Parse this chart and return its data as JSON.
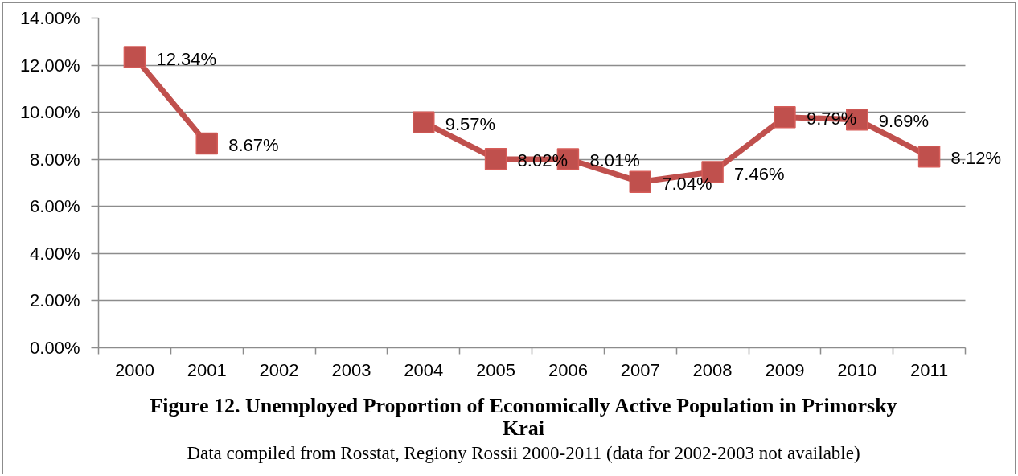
{
  "chart_data": {
    "type": "line",
    "title": "Figure 12. Unemployed Proportion of Economically Active Population in Primorsky Krai",
    "annotations": [
      "Data compiled from Rosstat, Regiony Rossii 2000-2011 (data for 2002-2003 not available)"
    ],
    "categories": [
      "2000",
      "2001",
      "2002",
      "2003",
      "2004",
      "2005",
      "2006",
      "2007",
      "2008",
      "2009",
      "2010",
      "2011"
    ],
    "series": [
      {
        "color": "#c0504d",
        "values": [
          12.34,
          8.67,
          null,
          null,
          9.57,
          8.02,
          8.01,
          7.04,
          7.46,
          9.79,
          9.69,
          8.12
        ],
        "value_labels": [
          "12.34%",
          "8.67%",
          null,
          null,
          "9.57%",
          "8.02%",
          "8.01%",
          "7.04%",
          "7.46%",
          "9.79%",
          "9.69%",
          "8.12%"
        ]
      }
    ],
    "ylim": [
      0,
      14
    ],
    "yticks": [
      {
        "value": 0,
        "label": "0.00%"
      },
      {
        "value": 2,
        "label": "2.00%"
      },
      {
        "value": 4,
        "label": "4.00%"
      },
      {
        "value": 6,
        "label": "6.00%"
      },
      {
        "value": 8,
        "label": "8.00%"
      },
      {
        "value": 10,
        "label": "10.00%"
      },
      {
        "value": 12,
        "label": "12.00%"
      },
      {
        "value": 14,
        "label": "14.00%"
      }
    ],
    "grid": "y",
    "marker": "square",
    "line_style": "solid"
  }
}
